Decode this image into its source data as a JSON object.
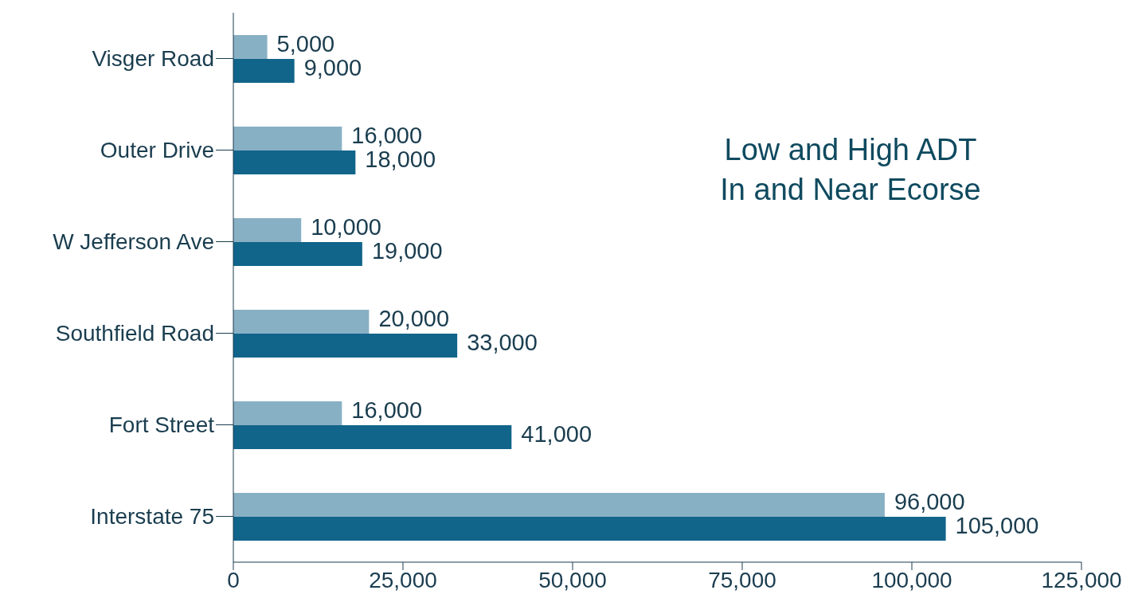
{
  "chart_data": {
    "type": "bar",
    "orientation": "horizontal",
    "title": "Low and High ADT\nIn and Near Ecorse",
    "categories": [
      "Visger Road",
      "Outer Drive",
      "W Jefferson Ave",
      "Southfield Road",
      "Fort Street",
      "Interstate 75"
    ],
    "series": [
      {
        "color": "#88b0c4",
        "values": [
          5000,
          16000,
          10000,
          20000,
          16000,
          96000
        ],
        "value_labels": [
          "5,000",
          "16,000",
          "10,000",
          "20,000",
          "16,000",
          "96,000"
        ]
      },
      {
        "color": "#11648a",
        "values": [
          9000,
          18000,
          19000,
          33000,
          41000,
          105000
        ],
        "value_labels": [
          "9,000",
          "18,000",
          "19,000",
          "33,000",
          "41,000",
          "105,000"
        ]
      }
    ],
    "xlim": [
      0,
      125000
    ],
    "xticks": [
      0,
      {
        "value": 25000,
        "label": "25,000"
      },
      {
        "value": 50000,
        "label": "50,000"
      },
      {
        "value": 75000,
        "label": "75,000"
      },
      {
        "value": 100000,
        "label": "100,000"
      },
      {
        "value": 125000,
        "label": "125,000"
      }
    ],
    "grid": false,
    "legend": false
  }
}
